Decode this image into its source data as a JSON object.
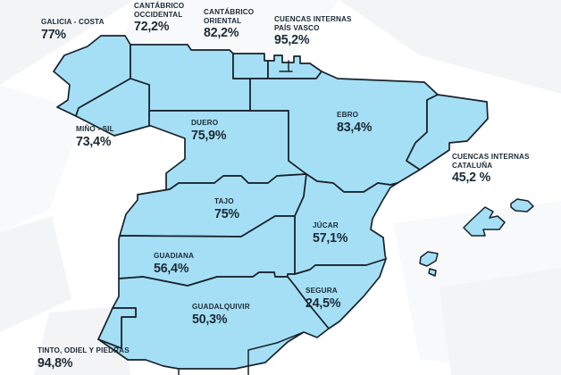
{
  "colors": {
    "region_fill": "#a5dff5",
    "region_border": "#17222b",
    "label_text": "#1b2a35",
    "background": "#ffffff",
    "facet_light": "#f3f4f6",
    "facet_lighter": "#f8f9fa"
  },
  "map": {
    "regions": [
      {
        "id": "galicia_costa",
        "name": "GALICIA - COSTA",
        "value": "77%"
      },
      {
        "id": "cantabrico_occidental",
        "name": "CANTÁBRICO\nOCCIDENTAL",
        "value": "72,2%"
      },
      {
        "id": "cantabrico_oriental",
        "name": "CANTÁBRICO\nORIENTAL",
        "value": "82,2%"
      },
      {
        "id": "pais_vasco",
        "name": "CUENCAS INTERNAS\nPAÍS VASCO",
        "value": "95,2%"
      },
      {
        "id": "mino_sil",
        "name": "MIÑO - SIL",
        "value": "73,4%"
      },
      {
        "id": "duero",
        "name": "DUERO",
        "value": "75,9%"
      },
      {
        "id": "ebro",
        "name": "EBRO",
        "value": "83,4%"
      },
      {
        "id": "cataluna",
        "name": "CUENCAS INTERNAS\nCATALUÑA",
        "value": "45,2 %"
      },
      {
        "id": "tajo",
        "name": "TAJO",
        "value": "75%"
      },
      {
        "id": "jucar",
        "name": "JÚCAR",
        "value": "57,1%"
      },
      {
        "id": "guadiana",
        "name": "GUADIANA",
        "value": "56,4%"
      },
      {
        "id": "segura",
        "name": "SEGURA",
        "value": "24,5%"
      },
      {
        "id": "guadalquivir",
        "name": "GUADALQUIVIR",
        "value": "50,3%"
      },
      {
        "id": "tinto_odiel_piedras",
        "name": "TINTO, ODIEL Y PIEDRAS",
        "value": "94,8%"
      }
    ],
    "islands": [
      {
        "id": "mallorca"
      },
      {
        "id": "menorca"
      },
      {
        "id": "ibiza"
      },
      {
        "id": "formentera"
      }
    ]
  }
}
